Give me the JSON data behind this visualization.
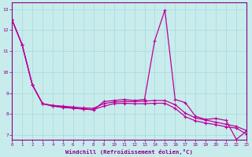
{
  "xlabel": "Windchill (Refroidissement éolien,°C)",
  "bg_color": "#c8ecec",
  "line_color": "#bb0099",
  "grid_color": "#a8d8d8",
  "axis_color": "#880088",
  "tick_color": "#880088",
  "xlim": [
    0,
    23
  ],
  "ylim": [
    6.8,
    13.3
  ],
  "yticks": [
    7,
    8,
    9,
    10,
    11,
    12,
    13
  ],
  "xticks": [
    0,
    1,
    2,
    3,
    4,
    5,
    6,
    7,
    8,
    9,
    10,
    11,
    12,
    13,
    14,
    15,
    16,
    17,
    18,
    19,
    20,
    21,
    22,
    23
  ],
  "line1_x": [
    0,
    1,
    2,
    3,
    4,
    5,
    6,
    7,
    8,
    9,
    10,
    11,
    12,
    13,
    14,
    15,
    16,
    17,
    18,
    19,
    20,
    21,
    22,
    23
  ],
  "line1_y": [
    12.5,
    11.3,
    9.4,
    8.5,
    8.4,
    8.35,
    8.3,
    8.25,
    8.2,
    8.6,
    8.65,
    8.7,
    8.65,
    8.7,
    11.5,
    12.95,
    8.7,
    8.55,
    7.9,
    7.75,
    7.8,
    7.7,
    6.8,
    7.2
  ],
  "line2_x": [
    0,
    1,
    2,
    3,
    4,
    5,
    6,
    7,
    8,
    9,
    10,
    11,
    12,
    13,
    14,
    15,
    16,
    17,
    18,
    19,
    20,
    21,
    22,
    23
  ],
  "line2_y": [
    12.5,
    11.3,
    9.4,
    8.5,
    8.42,
    8.38,
    8.34,
    8.3,
    8.28,
    8.5,
    8.58,
    8.6,
    8.6,
    8.62,
    8.65,
    8.65,
    8.45,
    8.05,
    7.82,
    7.72,
    7.62,
    7.52,
    7.42,
    7.22
  ],
  "line3_x": [
    0,
    1,
    2,
    3,
    4,
    5,
    6,
    7,
    8,
    9,
    10,
    11,
    12,
    13,
    14,
    15,
    16,
    17,
    18,
    19,
    20,
    21,
    22,
    23
  ],
  "line3_y": [
    12.5,
    11.3,
    9.4,
    8.5,
    8.38,
    8.32,
    8.28,
    8.24,
    8.22,
    8.38,
    8.5,
    8.52,
    8.5,
    8.5,
    8.52,
    8.52,
    8.28,
    7.88,
    7.68,
    7.58,
    7.5,
    7.4,
    7.34,
    7.05
  ]
}
